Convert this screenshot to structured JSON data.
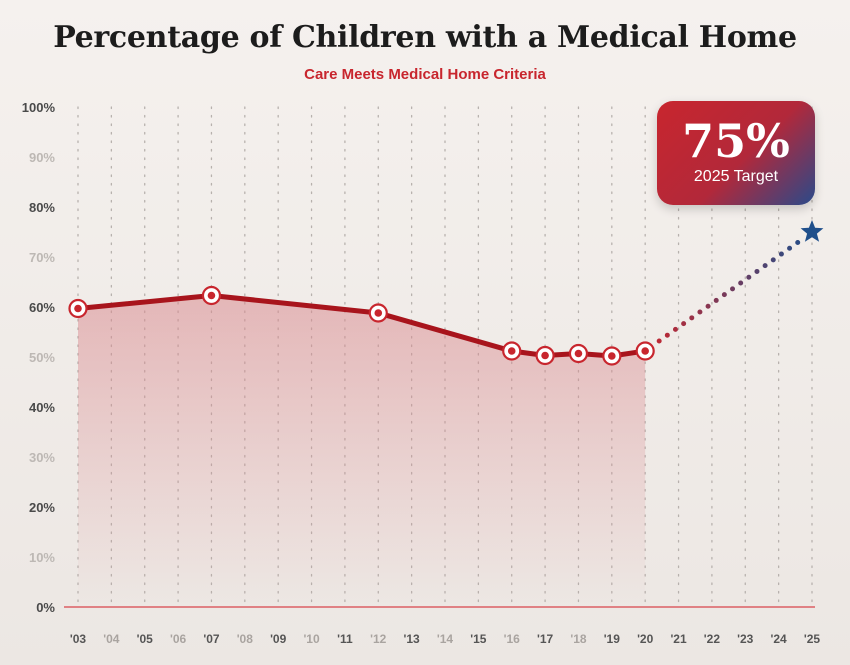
{
  "title": "Percentage of Children with a Medical Home",
  "subtitle": "Care Meets Medical Home Criteria",
  "target_badge": {
    "value": "75%",
    "label": "2025 Target"
  },
  "colors": {
    "accent_red": "#c8262e",
    "line_dark_red": "#a8141c",
    "target_blue": "#1f4f8b",
    "area_fill": "#d98a8f"
  },
  "icons": {
    "target_marker": "star-icon"
  },
  "chart_data": {
    "type": "line",
    "title": "Percentage of Children with a Medical Home",
    "subtitle": "Care Meets Medical Home Criteria",
    "x_tick_labels": [
      "'03",
      "'04",
      "'05",
      "'06",
      "'07",
      "'08",
      "'09",
      "'10",
      "'11",
      "'12",
      "'13",
      "'14",
      "'15",
      "'16",
      "'17",
      "'18",
      "'19",
      "'20",
      "'21",
      "'22",
      "'23",
      "'24",
      "'25"
    ],
    "y_tick_labels": [
      "0%",
      "10%",
      "20%",
      "30%",
      "40%",
      "50%",
      "60%",
      "70%",
      "80%",
      "90%",
      "100%"
    ],
    "ylim": [
      0,
      100
    ],
    "xlim": [
      2003,
      2025
    ],
    "grid": "vertical dotted",
    "series": [
      {
        "x": [
          2003,
          2007,
          2012,
          2016,
          2017,
          2018,
          2019,
          2020
        ],
        "y": [
          59.7,
          62.3,
          58.8,
          51.2,
          50.3,
          50.7,
          50.2,
          51.2
        ]
      },
      {
        "x": [
          2020,
          2025
        ],
        "y": [
          51.2,
          75
        ]
      }
    ],
    "annotations": [
      {
        "x": 2025,
        "y": 75,
        "text": "75%",
        "sub": "2025 Target"
      }
    ]
  }
}
